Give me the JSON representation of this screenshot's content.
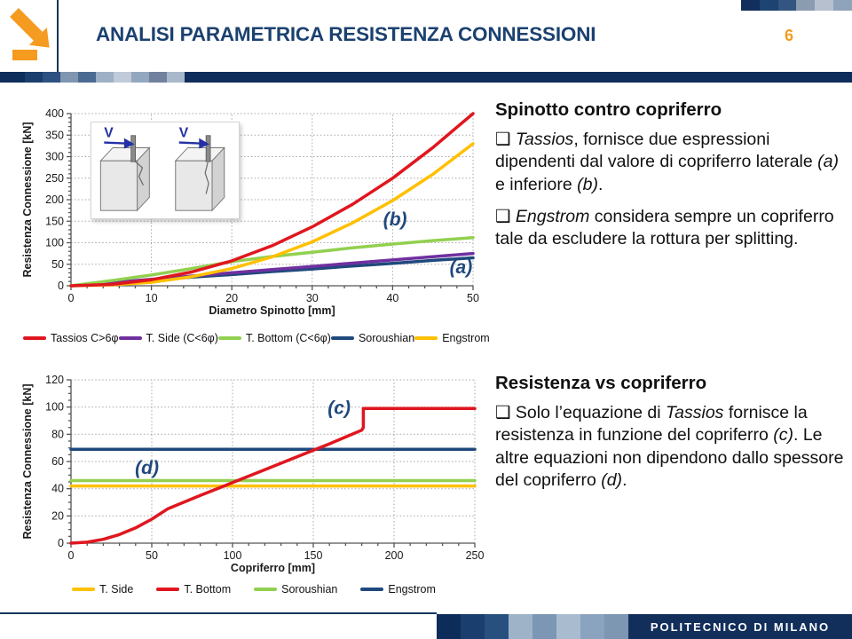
{
  "header": {
    "title": "ANALISI PARAMETRICA RESISTENZA CONNESSIONI",
    "page_number": "6",
    "title_color": "#1b4170",
    "accent_orange": "#F59B20",
    "navy": "#17365E",
    "corner_squares": [
      "#122f5c",
      "#1d4372",
      "#33557f",
      "#8b9cb1",
      "#b6c0cf",
      "#8fa3ba"
    ],
    "band": {
      "lead": "#0f2d5a",
      "squares": [
        "#1a3e6e",
        "#2d5180",
        "#8096b0",
        "#4a6a92",
        "#9db0c5",
        "#c0cad8",
        "#93a8bf",
        "#71819d",
        "#a9b8cb"
      ],
      "tail": "#0f2d5a"
    }
  },
  "inset": {
    "label_left": "V",
    "label_right": "V",
    "arrow_blue": "#2331a5"
  },
  "chart_data": [
    {
      "type": "line",
      "title": "",
      "xlabel": "Diametro Spinotto [mm]",
      "ylabel": "Resistenza Connessione [kN]",
      "xlim": [
        0,
        50
      ],
      "ylim": [
        0,
        400
      ],
      "x_major_step": 10,
      "x_minor_step": 2,
      "y_major_step": 50,
      "y_minor_step": 10,
      "grid": "dotted",
      "legend_position": "bottom",
      "x": [
        0,
        5,
        10,
        15,
        20,
        25,
        30,
        35,
        40,
        45,
        50
      ],
      "series": [
        {
          "name": "Tassios C>6φ",
          "color": "#E0161F",
          "values": [
            0,
            3,
            14,
            32,
            58,
            93,
            137,
            189,
            250,
            321,
            400
          ]
        },
        {
          "name": "T. Side (C<6φ)",
          "color": "#7030A0",
          "values": [
            0,
            7.5,
            15,
            22.5,
            30,
            37.5,
            45,
            52.5,
            60,
            67.5,
            75
          ]
        },
        {
          "name": "T. Bottom (C<6φ)",
          "color": "#92D050",
          "values": [
            0,
            12,
            25,
            40,
            56,
            68,
            78,
            88,
            97,
            105,
            112
          ]
        },
        {
          "name": "Soroushian",
          "color": "#1F497D",
          "values": [
            0,
            6.5,
            13,
            20,
            26,
            33,
            39,
            46,
            52,
            59,
            65
          ]
        },
        {
          "name": "Engstrom",
          "color": "#FFC000",
          "values": [
            0,
            2,
            8,
            21,
            40,
            67,
            102,
            146,
            198,
            259,
            330
          ]
        }
      ],
      "draw_order": [
        3,
        1,
        2,
        4,
        0
      ],
      "annotation_color": "#1F497D",
      "annotations": [
        {
          "text": "(b)",
          "x": 40.3,
          "y": 140
        },
        {
          "text": "(a)",
          "x": 48.5,
          "y": 29
        }
      ]
    },
    {
      "type": "line",
      "title": "",
      "xlabel": "Copriferro [mm]",
      "ylabel": "Resistenza Connessione [kN]",
      "xlim": [
        0,
        250
      ],
      "ylim": [
        0,
        120
      ],
      "x_major_step": 50,
      "x_minor_step": 10,
      "y_major_step": 20,
      "y_minor_step": 5,
      "grid": "dotted",
      "legend_position": "bottom",
      "series": [
        {
          "name": "T. Side",
          "color": "#FFC000",
          "x": [
            0,
            250
          ],
          "values": [
            42,
            42
          ]
        },
        {
          "name": "T. Bottom",
          "color": "#E0161F",
          "x": [
            0,
            10,
            20,
            30,
            40,
            50,
            60,
            80,
            100,
            120,
            140,
            160,
            180,
            181,
            181,
            250
          ],
          "values": [
            0,
            0.7,
            2.8,
            6.3,
            11.2,
            17.6,
            25.3,
            35,
            44.5,
            54,
            63.5,
            73,
            83,
            85,
            99,
            99
          ]
        },
        {
          "name": "Soroushian",
          "color": "#92D050",
          "x": [
            0,
            250
          ],
          "values": [
            46,
            46
          ]
        },
        {
          "name": "Engstrom",
          "color": "#1F497D",
          "x": [
            0,
            250
          ],
          "values": [
            69,
            69
          ]
        }
      ],
      "draw_order": [
        0,
        2,
        3,
        1
      ],
      "annotation_color": "#1F497D",
      "annotations": [
        {
          "text": "(c)",
          "x": 166,
          "y": 95
        },
        {
          "text": "(d)",
          "x": 47,
          "y": 51
        }
      ]
    }
  ],
  "text_blocks": [
    {
      "heading": "Spinotto contro copriferro",
      "paragraphs": [
        [
          {
            "t": "❑ "
          },
          {
            "t": "Tassios",
            "i": true
          },
          {
            "t": ", fornisce due espressioni dipendenti dal valore di copriferro laterale "
          },
          {
            "t": "(a)",
            "i": true
          },
          {
            "t": " e inferiore "
          },
          {
            "t": "(b)",
            "i": true
          },
          {
            "t": "."
          }
        ],
        [
          {
            "t": "❑ "
          },
          {
            "t": "Engstrom",
            "i": true
          },
          {
            "t": "  considera sempre un copriferro tale da escludere la rottura per splitting."
          }
        ]
      ]
    },
    {
      "heading": "Resistenza vs copriferro",
      "paragraphs": [
        [
          {
            "t": "❑ Solo l’equazione di "
          },
          {
            "t": "Tassios",
            "i": true
          },
          {
            "t": " fornisce la resistenza in funzione del copriferro "
          },
          {
            "t": "(c)",
            "i": true
          },
          {
            "t": ". Le altre equazioni  non dipendono dallo spessore del copriferro "
          },
          {
            "t": "(d)",
            "i": true
          },
          {
            "t": "."
          }
        ]
      ]
    }
  ],
  "footer": {
    "logo_text": "POLITECNICO DI MILANO",
    "navy": "#122f5c",
    "line_color": "#17365E",
    "squares": [
      "#0e2c59",
      "#1a3e6e",
      "#27507f",
      "#9fb3c8",
      "#7b97b5",
      "#a9bccf",
      "#8aa4bf",
      "#7d96b2"
    ]
  }
}
